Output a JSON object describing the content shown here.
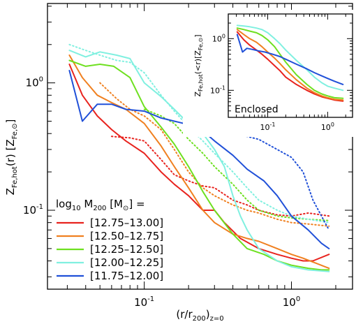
{
  "chart_data": [
    {
      "type": "line",
      "xlabel": "(r/r_200)_z=0",
      "ylabel": "Z_Fe,hot(r) [Z_Fe,⊙]",
      "xlog": true,
      "ylog": true,
      "xlim": [
        0.022,
        2.6
      ],
      "ylim": [
        0.024,
        4.2
      ],
      "x_ticklabels": [
        {
          "v": 0.1,
          "base": "10",
          "exp": "-1"
        },
        {
          "v": 1,
          "base": "10",
          "exp": "0"
        }
      ],
      "y_ticklabels": [
        {
          "v": 0.1,
          "base": "10",
          "exp": "-1"
        },
        {
          "v": 1,
          "base": "10",
          "exp": "0"
        }
      ],
      "legend": {
        "title_parts": [
          "log",
          "10",
          " M",
          "200",
          " [M",
          "⊙",
          "] ="
        ],
        "placement": "bottom-left"
      },
      "series": [
        {
          "name": "[12.75–13.00]",
          "color": "#e8231e",
          "x": [
            0.031,
            0.038,
            0.048,
            0.06,
            0.075,
            0.1,
            0.13,
            0.16,
            0.2,
            0.25,
            0.3,
            0.35,
            0.45,
            0.6,
            0.8,
            1.0,
            1.2,
            1.4,
            1.8
          ],
          "y": [
            1.4,
            0.8,
            0.55,
            0.43,
            0.35,
            0.28,
            0.2,
            0.16,
            0.13,
            0.1,
            0.1,
            0.08,
            0.06,
            0.05,
            0.045,
            0.042,
            0.04,
            0.04,
            0.045
          ]
        },
        {
          "name": "[12.50–12.75]",
          "color": "#f08020",
          "x": [
            0.031,
            0.038,
            0.048,
            0.06,
            0.075,
            0.1,
            0.13,
            0.16,
            0.2,
            0.25,
            0.3,
            0.4,
            0.5,
            0.6,
            0.8,
            1.0,
            1.2,
            1.5,
            1.8
          ],
          "y": [
            1.65,
            1.1,
            0.8,
            0.7,
            0.62,
            0.48,
            0.32,
            0.22,
            0.15,
            0.1,
            0.08,
            0.065,
            0.06,
            0.057,
            0.05,
            0.045,
            0.042,
            0.038,
            0.035
          ]
        },
        {
          "name": "[12.25–12.50]",
          "color": "#6ee020",
          "x": [
            0.031,
            0.04,
            0.05,
            0.062,
            0.08,
            0.1,
            0.13,
            0.16,
            0.2,
            0.25,
            0.3,
            0.4,
            0.5,
            0.65,
            0.8,
            1.0,
            1.3,
            1.6,
            1.8
          ],
          "y": [
            1.5,
            1.35,
            1.4,
            1.35,
            1.1,
            0.65,
            0.45,
            0.33,
            0.22,
            0.14,
            0.1,
            0.065,
            0.05,
            0.045,
            0.04,
            0.037,
            0.035,
            0.034,
            0.034
          ]
        },
        {
          "name": "[12.00–12.25]",
          "color": "#80f0e0",
          "x": [
            0.031,
            0.04,
            0.05,
            0.065,
            0.08,
            0.1,
            0.13,
            0.16,
            0.2,
            0.25,
            0.3,
            0.35,
            0.4,
            0.45,
            0.5,
            0.6,
            0.8,
            1.0,
            1.3,
            1.8
          ],
          "y": [
            1.8,
            1.6,
            1.75,
            1.65,
            1.55,
            1.0,
            0.78,
            0.62,
            0.48,
            0.4,
            0.3,
            0.22,
            0.13,
            0.09,
            0.07,
            0.05,
            0.04,
            0.036,
            0.034,
            0.033
          ]
        },
        {
          "name": "[11.75–12.00]",
          "color": "#2050d8",
          "x": [
            0.031,
            0.038,
            0.048,
            0.06,
            0.075,
            0.1,
            0.13,
            0.16,
            0.2,
            0.25,
            0.3,
            0.4,
            0.5,
            0.65,
            0.8,
            1.0,
            1.3,
            1.6,
            1.8
          ],
          "y": [
            1.25,
            0.5,
            0.68,
            0.68,
            0.62,
            0.6,
            0.53,
            0.5,
            0.47,
            0.42,
            0.35,
            0.27,
            0.21,
            0.17,
            0.13,
            0.09,
            0.07,
            0.055,
            0.05
          ]
        }
      ],
      "dotted_series": [
        {
          "color": "#e8231e",
          "x": [
            0.06,
            0.08,
            0.1,
            0.13,
            0.16,
            0.2,
            0.25,
            0.3,
            0.4,
            0.5,
            0.6,
            0.8,
            1.0,
            1.3,
            1.6,
            1.8
          ],
          "y": [
            0.38,
            0.37,
            0.35,
            0.25,
            0.19,
            0.17,
            0.155,
            0.15,
            0.12,
            0.11,
            0.1,
            0.092,
            0.09,
            0.095,
            0.092,
            0.09
          ]
        },
        {
          "color": "#f08020",
          "x": [
            0.05,
            0.065,
            0.08,
            0.1,
            0.13,
            0.16,
            0.2,
            0.25,
            0.3,
            0.4,
            0.5,
            0.6,
            0.8,
            1.0,
            1.3,
            1.8
          ],
          "y": [
            1.0,
            0.75,
            0.62,
            0.55,
            0.43,
            0.3,
            0.2,
            0.15,
            0.13,
            0.11,
            0.1,
            0.095,
            0.085,
            0.08,
            0.078,
            0.075
          ]
        },
        {
          "color": "#6ee020",
          "x": [
            0.1,
            0.13,
            0.16,
            0.2,
            0.25,
            0.3,
            0.4,
            0.5,
            0.6,
            0.8,
            1.0,
            1.3,
            1.8
          ],
          "y": [
            0.62,
            0.55,
            0.48,
            0.36,
            0.28,
            0.22,
            0.16,
            0.12,
            0.1,
            0.09,
            0.087,
            0.085,
            0.083
          ]
        },
        {
          "color": "#80f0e0",
          "x": [
            0.031,
            0.04,
            0.05,
            0.065,
            0.08,
            0.1,
            0.13,
            0.16,
            0.2,
            0.25,
            0.3,
            0.4,
            0.5,
            0.6,
            0.8,
            1.0,
            1.3,
            1.8
          ],
          "y": [
            2.0,
            1.8,
            1.65,
            1.5,
            1.45,
            1.2,
            0.8,
            0.6,
            0.45,
            0.35,
            0.28,
            0.2,
            0.15,
            0.12,
            0.1,
            0.09,
            0.085,
            0.08
          ]
        },
        {
          "color": "#2050d8",
          "x": [
            0.2,
            0.25,
            0.3,
            0.4,
            0.5,
            0.6,
            0.8,
            1.0,
            1.2,
            1.4,
            1.6,
            1.8
          ],
          "y": [
            0.48,
            0.45,
            0.42,
            0.4,
            0.38,
            0.36,
            0.3,
            0.26,
            0.2,
            0.12,
            0.09,
            0.07
          ]
        }
      ]
    },
    {
      "type": "line",
      "annotation": "Enclosed",
      "ylabel": "Z_Fe,hot(<r)[Z_Fe,⊙]",
      "xlog": true,
      "ylog": true,
      "xlim": [
        0.022,
        2.6
      ],
      "ylim": [
        0.03,
        3.0
      ],
      "x_ticklabels": [
        {
          "v": 0.1,
          "base": "10",
          "exp": "-1"
        },
        {
          "v": 1,
          "base": "10",
          "exp": "0"
        }
      ],
      "y_ticklabels": [
        {
          "v": 0.1,
          "base": "10",
          "exp": "-1"
        },
        {
          "v": 1,
          "base": "10",
          "exp": "0"
        }
      ],
      "series": [
        {
          "color": "#e8231e",
          "x": [
            0.031,
            0.04,
            0.05,
            0.065,
            0.08,
            0.1,
            0.13,
            0.16,
            0.2,
            0.3,
            0.45,
            0.6,
            0.8,
            1.0,
            1.3,
            1.8
          ],
          "y": [
            1.35,
            0.95,
            0.75,
            0.6,
            0.5,
            0.4,
            0.3,
            0.24,
            0.18,
            0.13,
            0.1,
            0.085,
            0.075,
            0.07,
            0.065,
            0.062
          ]
        },
        {
          "color": "#f08020",
          "x": [
            0.031,
            0.04,
            0.05,
            0.065,
            0.08,
            0.1,
            0.13,
            0.16,
            0.2,
            0.3,
            0.45,
            0.6,
            0.8,
            1.0,
            1.3,
            1.8
          ],
          "y": [
            1.5,
            1.2,
            1.0,
            0.85,
            0.7,
            0.55,
            0.42,
            0.33,
            0.25,
            0.16,
            0.11,
            0.09,
            0.078,
            0.072,
            0.067,
            0.065
          ]
        },
        {
          "color": "#6ee020",
          "x": [
            0.031,
            0.04,
            0.05,
            0.065,
            0.08,
            0.1,
            0.13,
            0.16,
            0.2,
            0.3,
            0.45,
            0.6,
            0.8,
            1.0,
            1.3,
            1.8
          ],
          "y": [
            1.6,
            1.5,
            1.4,
            1.3,
            1.15,
            0.95,
            0.7,
            0.5,
            0.35,
            0.2,
            0.13,
            0.1,
            0.085,
            0.078,
            0.072,
            0.07
          ]
        },
        {
          "color": "#80f0e0",
          "x": [
            0.031,
            0.04,
            0.05,
            0.065,
            0.08,
            0.1,
            0.13,
            0.16,
            0.2,
            0.3,
            0.45,
            0.6,
            0.8,
            1.0,
            1.3,
            1.8
          ],
          "y": [
            1.8,
            1.75,
            1.7,
            1.6,
            1.5,
            1.3,
            1.0,
            0.8,
            0.6,
            0.38,
            0.25,
            0.18,
            0.14,
            0.12,
            0.11,
            0.1
          ]
        },
        {
          "color": "#2050d8",
          "x": [
            0.031,
            0.038,
            0.045,
            0.055,
            0.07,
            0.09,
            0.12,
            0.16,
            0.2,
            0.3,
            0.45,
            0.6,
            0.8,
            1.0,
            1.3,
            1.8
          ],
          "y": [
            1.2,
            0.55,
            0.65,
            0.62,
            0.58,
            0.55,
            0.5,
            0.45,
            0.4,
            0.32,
            0.26,
            0.22,
            0.19,
            0.17,
            0.15,
            0.13
          ]
        }
      ]
    }
  ]
}
